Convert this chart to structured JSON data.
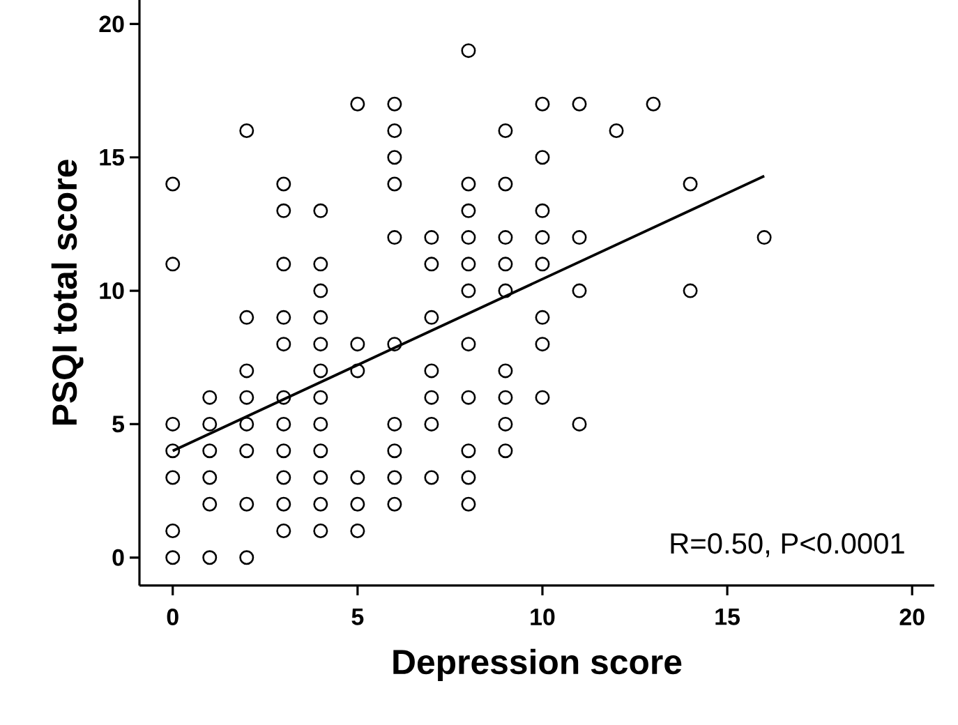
{
  "chart_data": {
    "type": "scatter",
    "xlabel": "Depression score",
    "ylabel": "PSQI total score",
    "xlim": [
      -0.9,
      20.6
    ],
    "ylim": [
      -1.05,
      20.9
    ],
    "xticks": [
      0,
      5,
      10,
      15,
      20
    ],
    "yticks": [
      0,
      5,
      10,
      15,
      20
    ],
    "annotations": [
      "R=0.50, P<0.0001"
    ],
    "series": [
      {
        "color": "#000000",
        "marker": "circle",
        "x": [
          0,
          0,
          0,
          0,
          0,
          0,
          0,
          1,
          1,
          1,
          1,
          1,
          1,
          2,
          2,
          2,
          2,
          2,
          2,
          2,
          2,
          3,
          3,
          3,
          3,
          3,
          3,
          3,
          3,
          3,
          3,
          3,
          4,
          4,
          4,
          4,
          4,
          4,
          4,
          4,
          4,
          4,
          4,
          4,
          5,
          5,
          5,
          5,
          5,
          5,
          6,
          6,
          6,
          6,
          6,
          6,
          6,
          6,
          6,
          6,
          7,
          7,
          7,
          7,
          7,
          7,
          7,
          8,
          8,
          8,
          8,
          8,
          8,
          8,
          8,
          8,
          8,
          8,
          9,
          9,
          9,
          9,
          9,
          9,
          9,
          9,
          9,
          10,
          10,
          10,
          10,
          10,
          10,
          10,
          10,
          11,
          11,
          11,
          11,
          12,
          13,
          14,
          14,
          16
        ],
        "values": [
          14,
          11,
          5,
          4,
          3,
          1,
          0,
          6,
          5,
          4,
          3,
          2,
          0,
          16,
          9,
          7,
          6,
          5,
          4,
          2,
          0,
          14,
          13,
          11,
          9,
          8,
          6,
          5,
          4,
          3,
          2,
          1,
          13,
          11,
          10,
          9,
          8,
          7,
          6,
          5,
          4,
          3,
          2,
          1,
          17,
          8,
          7,
          3,
          2,
          1,
          17,
          16,
          15,
          14,
          12,
          8,
          5,
          4,
          3,
          2,
          12,
          11,
          9,
          7,
          6,
          5,
          3,
          19,
          14,
          13,
          12,
          11,
          10,
          8,
          6,
          4,
          3,
          2,
          16,
          14,
          12,
          11,
          10,
          7,
          6,
          5,
          4,
          17,
          15,
          13,
          12,
          11,
          9,
          8,
          6,
          17,
          12,
          10,
          5,
          16,
          17,
          14,
          10,
          12
        ]
      },
      {
        "type": "line",
        "color": "#000000",
        "marker": "none",
        "line_style": "solid",
        "x": [
          0,
          16
        ],
        "values": [
          4.0,
          14.3
        ]
      }
    ]
  }
}
